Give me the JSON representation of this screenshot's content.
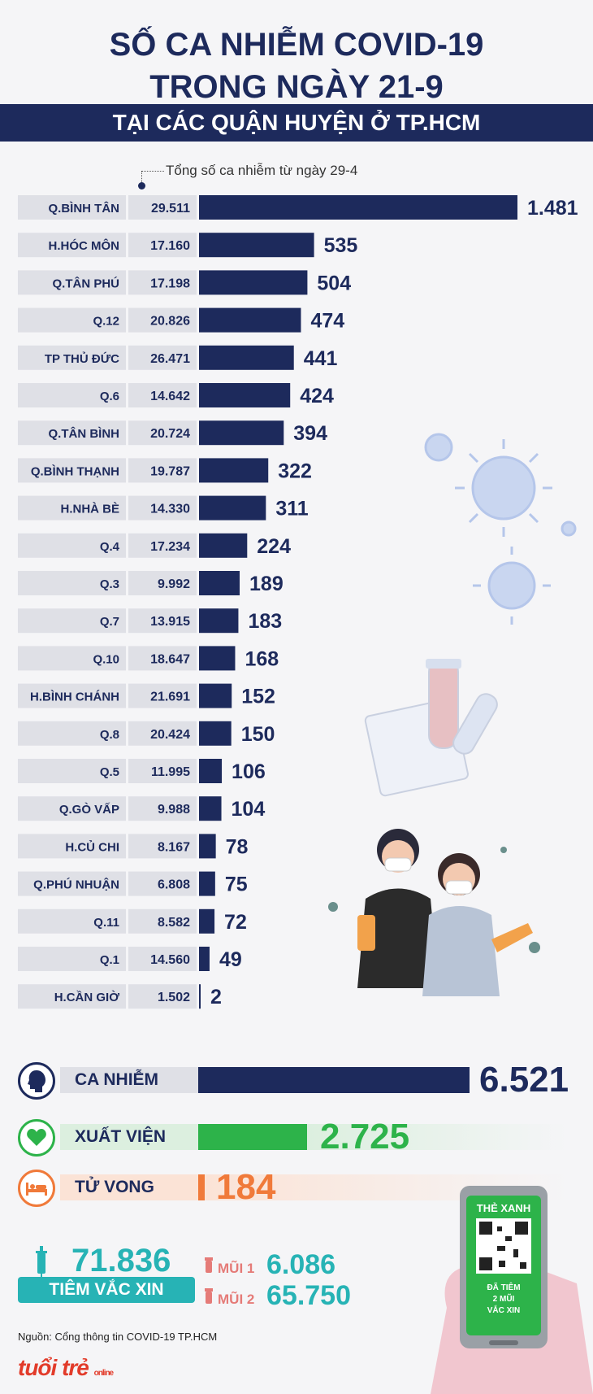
{
  "header": {
    "title_line1": "SỐ CA NHIỄM COVID-19",
    "title_line2": "TRONG NGÀY 21-9",
    "banner": "TẠI CÁC QUẬN HUYỆN Ở TP.HCM",
    "note": "Tổng số ca nhiễm từ ngày 29-4"
  },
  "chart_data": {
    "type": "bar",
    "orientation": "horizontal",
    "categories": [
      "Q.BÌNH TÂN",
      "H.HÓC MÔN",
      "Q.TÂN PHÚ",
      "Q.12",
      "TP THỦ ĐỨC",
      "Q.6",
      "Q.TÂN BÌNH",
      "Q.BÌNH THẠNH",
      "H.NHÀ BÈ",
      "Q.4",
      "Q.3",
      "Q.7",
      "Q.10",
      "H.BÌNH CHÁNH",
      "Q.8",
      "Q.5",
      "Q.GÒ VẤP",
      "H.CỦ CHI",
      "Q.PHÚ NHUẬN",
      "Q.11",
      "Q.1",
      "H.CẦN GIỜ"
    ],
    "totals_label": [
      "29.511",
      "17.160",
      "17.198",
      "20.826",
      "26.471",
      "14.642",
      "20.724",
      "19.787",
      "14.330",
      "17.234",
      "9.992",
      "13.915",
      "18.647",
      "21.691",
      "20.424",
      "11.995",
      "9.988",
      "8.167",
      "6.808",
      "8.582",
      "14.560",
      "1.502"
    ],
    "totals": [
      29511,
      17160,
      17198,
      20826,
      26471,
      14642,
      20724,
      19787,
      14330,
      17234,
      9992,
      13915,
      18647,
      21691,
      20424,
      11995,
      9988,
      8167,
      6808,
      8582,
      14560,
      1502
    ],
    "values_label": [
      "1.481",
      "535",
      "504",
      "474",
      "441",
      "424",
      "394",
      "322",
      "311",
      "224",
      "189",
      "183",
      "168",
      "152",
      "150",
      "106",
      "104",
      "78",
      "75",
      "72",
      "49",
      "2"
    ],
    "values": [
      1481,
      535,
      504,
      474,
      441,
      424,
      394,
      322,
      311,
      224,
      189,
      183,
      168,
      152,
      150,
      106,
      104,
      78,
      75,
      72,
      49,
      2
    ],
    "colors": {
      "bar": "#1d2a5c",
      "label_bg": "#dfe0e6"
    }
  },
  "summary": {
    "infected": {
      "label": "CA NHIỄM",
      "value": "6.521",
      "color": "#1d2a5c"
    },
    "recovered": {
      "label": "XUẤT VIỆN",
      "value": "2.725",
      "color": "#2db34a"
    },
    "deaths": {
      "label": "TỬ VONG",
      "value": "184",
      "color": "#f07a3a"
    }
  },
  "vaccine": {
    "total": "71.836",
    "label": "TIÊM VẮC XIN",
    "dose1_label": "MŨI 1",
    "dose1_value": "6.086",
    "dose2_label": "MŨI 2",
    "dose2_value": "65.750",
    "color": "#27b3b5"
  },
  "phone": {
    "card_title": "THẺ XANH",
    "card_line1": "ĐÃ TIÊM",
    "card_line2": "2 MŨI",
    "card_line3": "VẮC XIN"
  },
  "footer": {
    "source": "Nguồn: Cổng thông tin COVID-19 TP.HCM",
    "logo": "tuổi trẻ",
    "logo_sub": "online"
  }
}
